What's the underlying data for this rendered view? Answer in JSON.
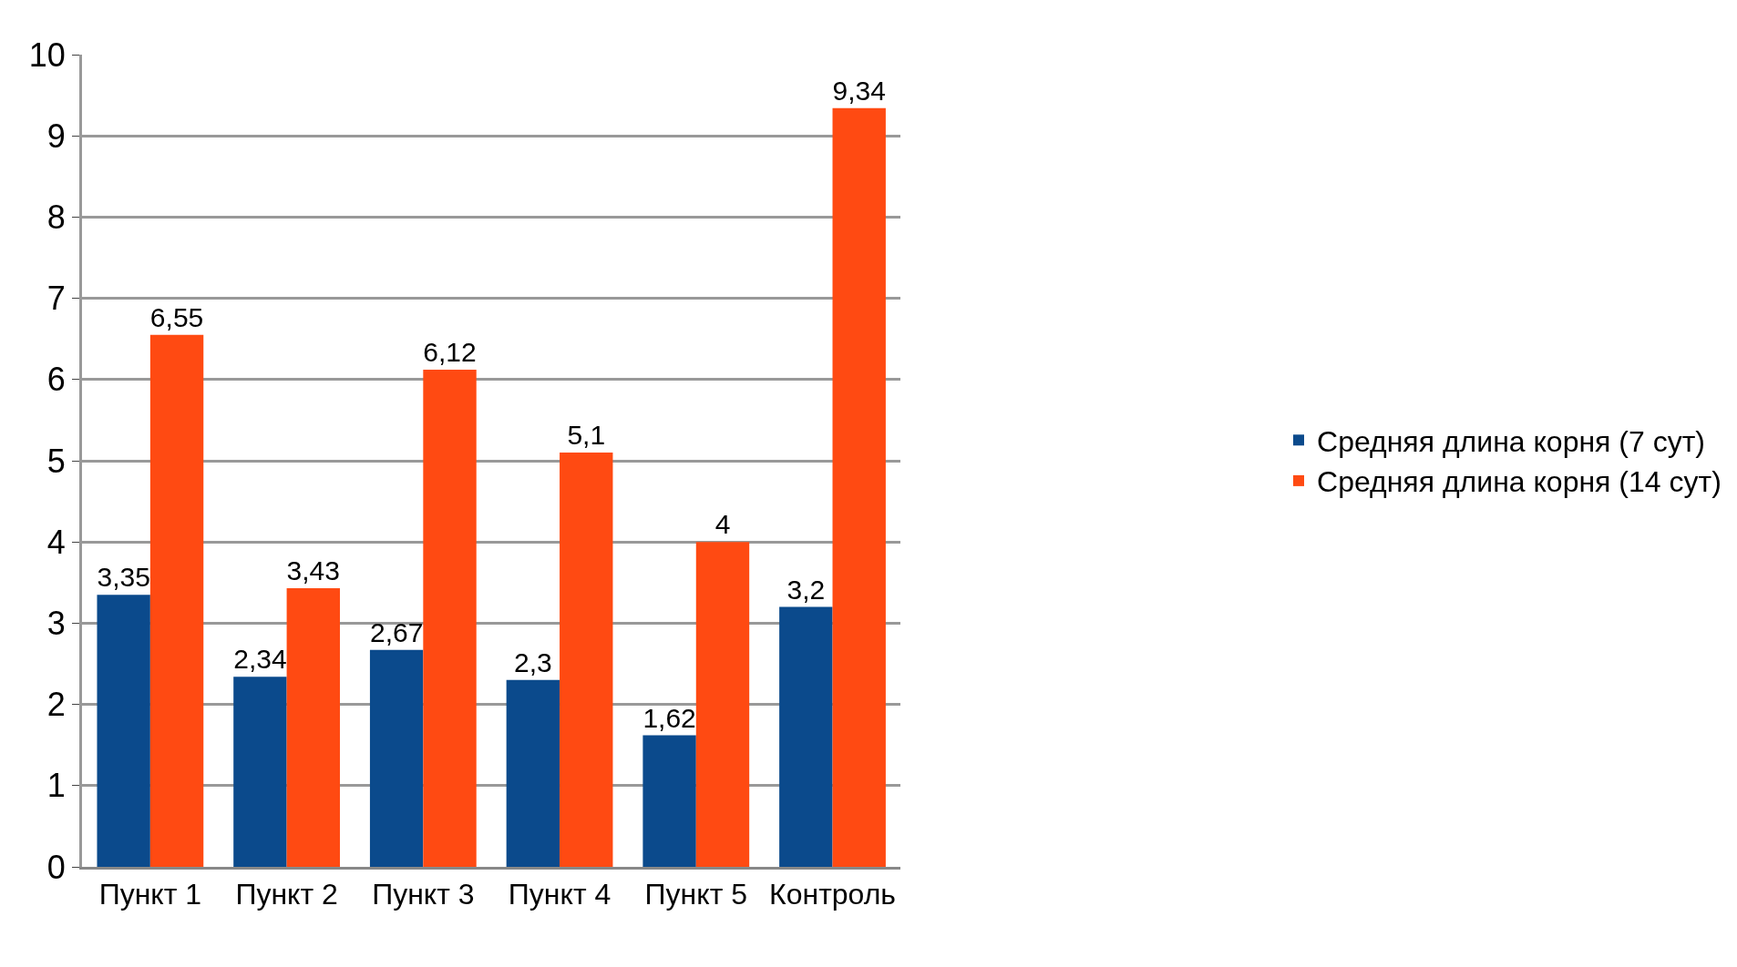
{
  "chart_data": {
    "type": "bar",
    "categories": [
      "Пункт 1",
      "Пункт 2",
      "Пункт 3",
      "Пункт 4",
      "Пункт 5",
      "Контроль"
    ],
    "series": [
      {
        "name": "Средняя длина корня (7 сут)",
        "color": "#0b4a8c",
        "values": [
          3.35,
          2.34,
          2.67,
          2.3,
          1.62,
          3.2
        ],
        "value_labels": [
          "3,35",
          "2,34",
          "2,67",
          "2,3",
          "1,62",
          "3,2"
        ]
      },
      {
        "name": "Средняя длина корня (14 сут)",
        "color": "#ff4a12",
        "values": [
          6.55,
          3.43,
          6.12,
          5.1,
          4,
          9.34
        ],
        "value_labels": [
          "6,55",
          "3,43",
          "6,12",
          "5,1",
          "4",
          "9,34"
        ]
      }
    ],
    "ylim": [
      0,
      10
    ],
    "yticks": [
      0,
      1,
      2,
      3,
      4,
      5,
      6,
      7,
      8,
      9,
      10
    ],
    "grid": "y",
    "legend": "right"
  }
}
